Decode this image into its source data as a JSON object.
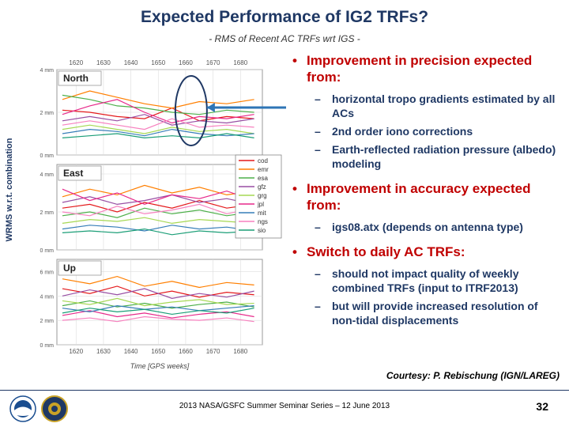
{
  "slide": {
    "title": "Expected Performance of IG2 TRFs?",
    "subtitle": "- RMS of Recent AC TRFs wrt IGS -",
    "y_axis_label": "WRMS  w.r.t.  combination",
    "courtesy": "Courtesy: P. Rebischung (IGN/LAREG)",
    "footer": "2013 NASA/GSFC Summer Seminar Series – 12 June 2013",
    "page_number": "32"
  },
  "bullets": [
    {
      "text": "Improvement in precision expected from:",
      "sub": [
        "horizontal tropo gradients estimated by all ACs",
        "2nd order iono corrections",
        "Earth-reflected radiation pressure (albedo) modeling"
      ]
    },
    {
      "text": "Improvement in accuracy expected from:",
      "sub": [
        "igs08.atx (depends on antenna type)"
      ]
    },
    {
      "text": "Switch to daily AC TRFs:",
      "sub": [
        "should not impact quality of weekly combined TRFs (input to ITRF2013)",
        "but will provide increased resolution of non-tidal displacements"
      ]
    }
  ],
  "chart_data": {
    "type": "line",
    "x_ticks": [
      "1620",
      "1630",
      "1640",
      "1650",
      "1660",
      "1670",
      "1680"
    ],
    "xlabel": "Time [GPS weeks]",
    "xlim": [
      1613,
      1688
    ],
    "legend": [
      "cod",
      "emr",
      "esa",
      "gfz",
      "grg",
      "jpl",
      "mit",
      "ngs",
      "sio"
    ],
    "colors": {
      "cod": "#e41a1c",
      "emr": "#ff7f00",
      "esa": "#4daf4a",
      "gfz": "#984ea3",
      "grg": "#a6d854",
      "jpl": "#e7298a",
      "mit": "#377eb8",
      "ngs": "#f781bf",
      "sio": "#1b9e77"
    },
    "panels": [
      {
        "name": "North",
        "y_ticks": [
          "0 mm",
          "2 mm",
          "4 mm"
        ],
        "ylim": [
          0,
          4
        ],
        "x": [
          1615,
          1625,
          1635,
          1645,
          1655,
          1665,
          1675,
          1685
        ],
        "series": {
          "cod": [
            2.1,
            2.0,
            1.8,
            1.7,
            2.2,
            1.6,
            1.8,
            1.7
          ],
          "emr": [
            2.6,
            3.0,
            2.7,
            2.4,
            2.2,
            2.5,
            2.4,
            2.6
          ],
          "esa": [
            2.8,
            2.6,
            2.3,
            2.2,
            2.0,
            1.9,
            2.1,
            2.0
          ],
          "gfz": [
            1.6,
            1.8,
            1.6,
            1.9,
            1.4,
            1.6,
            1.5,
            1.7
          ],
          "grg": [
            1.2,
            1.4,
            1.2,
            1.0,
            1.3,
            1.1,
            1.2,
            1.0
          ],
          "jpl": [
            1.9,
            2.3,
            2.6,
            2.0,
            1.5,
            1.8,
            1.7,
            1.9
          ],
          "mit": [
            1.0,
            1.2,
            1.1,
            0.9,
            1.2,
            1.0,
            0.9,
            1.0
          ],
          "ngs": [
            1.4,
            1.6,
            1.4,
            1.2,
            1.7,
            1.3,
            1.4,
            1.3
          ],
          "sio": [
            0.8,
            0.9,
            1.0,
            0.8,
            0.9,
            0.8,
            1.0,
            0.8
          ]
        }
      },
      {
        "name": "East",
        "y_ticks": [
          "0 mm",
          "2 mm",
          "4 mm"
        ],
        "ylim": [
          0,
          4.5
        ],
        "x": [
          1615,
          1625,
          1635,
          1645,
          1655,
          1665,
          1675,
          1685
        ],
        "series": {
          "cod": [
            2.2,
            2.4,
            2.0,
            2.5,
            2.2,
            2.6,
            2.2,
            2.4
          ],
          "emr": [
            2.8,
            3.2,
            2.9,
            3.4,
            3.0,
            3.3,
            2.9,
            3.1
          ],
          "esa": [
            1.8,
            2.0,
            1.7,
            2.2,
            1.9,
            2.1,
            1.8,
            2.0
          ],
          "gfz": [
            2.5,
            2.8,
            2.4,
            2.6,
            2.9,
            2.5,
            2.7,
            2.4
          ],
          "grg": [
            1.4,
            1.6,
            1.5,
            1.7,
            1.4,
            1.6,
            1.5,
            1.4
          ],
          "jpl": [
            3.2,
            2.6,
            3.0,
            2.4,
            2.9,
            2.7,
            3.1,
            2.6
          ],
          "mit": [
            1.1,
            1.3,
            1.2,
            1.0,
            1.3,
            1.1,
            1.2,
            1.0
          ],
          "ngs": [
            2.0,
            1.8,
            2.3,
            1.9,
            2.1,
            2.4,
            1.9,
            2.2
          ],
          "sio": [
            0.9,
            1.0,
            0.9,
            1.1,
            0.8,
            1.0,
            0.9,
            1.0
          ]
        }
      },
      {
        "name": "Up",
        "y_ticks": [
          "0 mm",
          "2 mm",
          "4 mm",
          "6 mm"
        ],
        "ylim": [
          0,
          7
        ],
        "x": [
          1615,
          1625,
          1635,
          1645,
          1655,
          1665,
          1675,
          1685
        ],
        "series": {
          "cod": [
            4.6,
            4.2,
            4.8,
            4.0,
            4.4,
            3.9,
            4.3,
            4.1
          ],
          "emr": [
            5.4,
            5.0,
            5.6,
            4.8,
            5.2,
            4.7,
            5.1,
            4.9
          ],
          "esa": [
            3.2,
            3.6,
            3.1,
            3.4,
            3.0,
            3.3,
            3.5,
            3.1
          ],
          "gfz": [
            4.0,
            4.5,
            4.1,
            4.6,
            3.8,
            4.2,
            3.9,
            4.4
          ],
          "grg": [
            3.6,
            3.3,
            3.8,
            3.2,
            3.5,
            3.7,
            3.3,
            3.4
          ],
          "jpl": [
            2.4,
            2.8,
            2.3,
            2.6,
            2.2,
            2.5,
            2.7,
            2.3
          ],
          "mit": [
            3.0,
            2.7,
            3.2,
            2.9,
            3.1,
            2.8,
            3.0,
            3.2
          ],
          "ngs": [
            2.0,
            2.2,
            1.9,
            2.3,
            2.1,
            2.0,
            2.2,
            1.9
          ],
          "sio": [
            2.6,
            3.0,
            2.7,
            2.9,
            2.5,
            2.8,
            2.6,
            3.0
          ]
        }
      }
    ]
  }
}
